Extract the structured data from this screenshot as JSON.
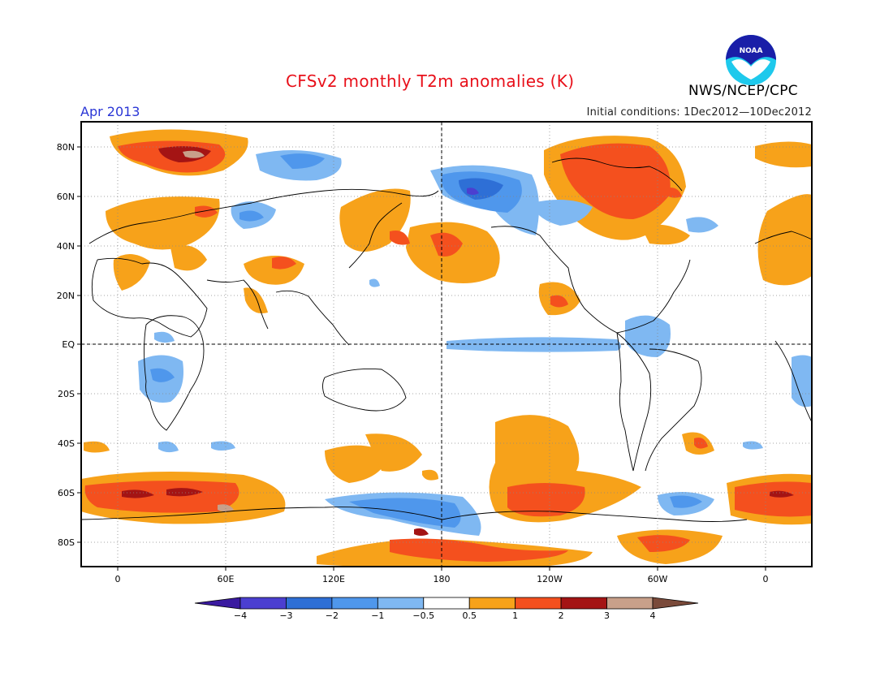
{
  "header": {
    "title": "CFSv2 monthly T2m anomalies (K)",
    "valid_month": "Apr 2013",
    "initial_conditions": "Initial conditions: 1Dec2012—10Dec2012",
    "agency": "NWS/NCEP/CPC",
    "logo_text": "NOAA"
  },
  "map": {
    "lat_labels": [
      "80N",
      "60N",
      "40N",
      "20N",
      "EQ",
      "20S",
      "40S",
      "60S",
      "80S"
    ],
    "lon_labels": [
      "0",
      "60E",
      "120E",
      "180",
      "120W",
      "60W",
      "0"
    ]
  },
  "colorbar": {
    "labels": [
      "−4",
      "−3",
      "−2",
      "−1",
      "−0.5",
      "0.5",
      "1",
      "2",
      "3",
      "4"
    ],
    "colors": [
      "#3a1aa0",
      "#4b3fd0",
      "#2e6fd6",
      "#4f97ec",
      "#7fb8f2",
      "#ffffff",
      "#f7a21a",
      "#f4501e",
      "#a41414",
      "#c8a08a",
      "#7a4a3a"
    ]
  }
}
